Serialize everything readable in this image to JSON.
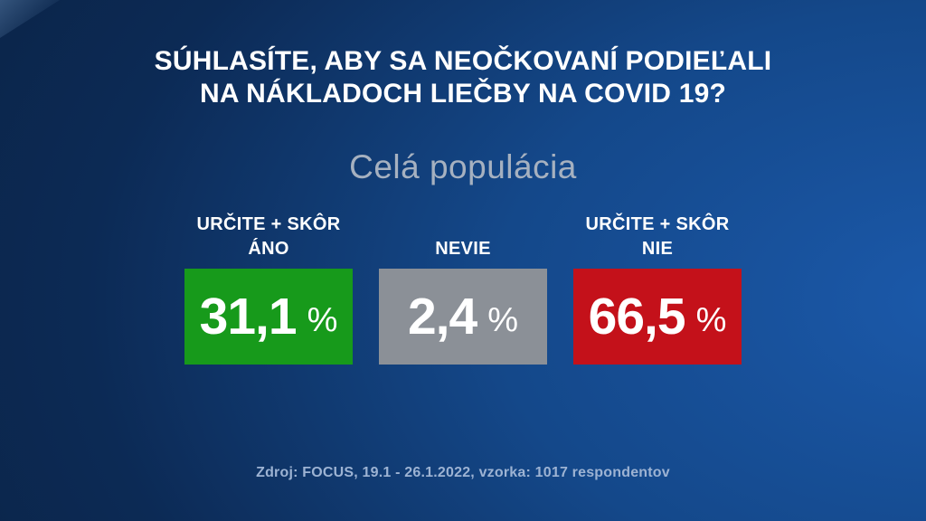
{
  "title": {
    "line1": "SÚHLASÍTE, ABY SA NEOČKOVANÍ PODIEĽALI",
    "line2": "NA NÁKLADOCH LIEČBY NA COVID 19?"
  },
  "subtitle": "Celá populácia",
  "results": [
    {
      "label_line1": "URČITE + SKÔR",
      "label_line2": "ÁNO",
      "value": "31,1",
      "unit": "%",
      "color": "#179a1b"
    },
    {
      "label_line1": "NEVIE",
      "label_line2": "",
      "value": "2,4",
      "unit": "%",
      "color": "#8b9097"
    },
    {
      "label_line1": "URČITE + SKÔR",
      "label_line2": "NIE",
      "value": "66,5",
      "unit": "%",
      "color": "#c4111a"
    }
  ],
  "source": "Zdroj: FOCUS, 19.1 - 26.1.2022, vzorka: 1017 respondentov",
  "colors": {
    "background_dark": "#0a2242",
    "background_light": "#1b59aa",
    "title_text": "#ffffff",
    "subtitle_text": "#a6b1c0",
    "source_text": "#9db3d3",
    "agree_green": "#179a1b",
    "neutral_gray": "#8b9097",
    "disagree_red": "#c4111a"
  },
  "chart_data": {
    "type": "bar",
    "title": "SÚHLASÍTE, ABY SA NEOČKOVANÍ PODIEĽALI NA NÁKLADOCH LIEČBY NA COVID 19?",
    "subtitle": "Celá populácia",
    "categories": [
      "URČITE + SKÔR ÁNO",
      "NEVIE",
      "URČITE + SKÔR NIE"
    ],
    "values": [
      31.1,
      2.4,
      66.5
    ],
    "unit": "%",
    "value_labels": [
      "31,1 %",
      "2,4 %",
      "66,5 %"
    ],
    "colors": [
      "#179a1b",
      "#8b9097",
      "#c4111a"
    ],
    "source": "Zdroj: FOCUS, 19.1 - 26.1.2022, vzorka: 1017 respondentov",
    "legend_position": "none",
    "grid": false
  }
}
